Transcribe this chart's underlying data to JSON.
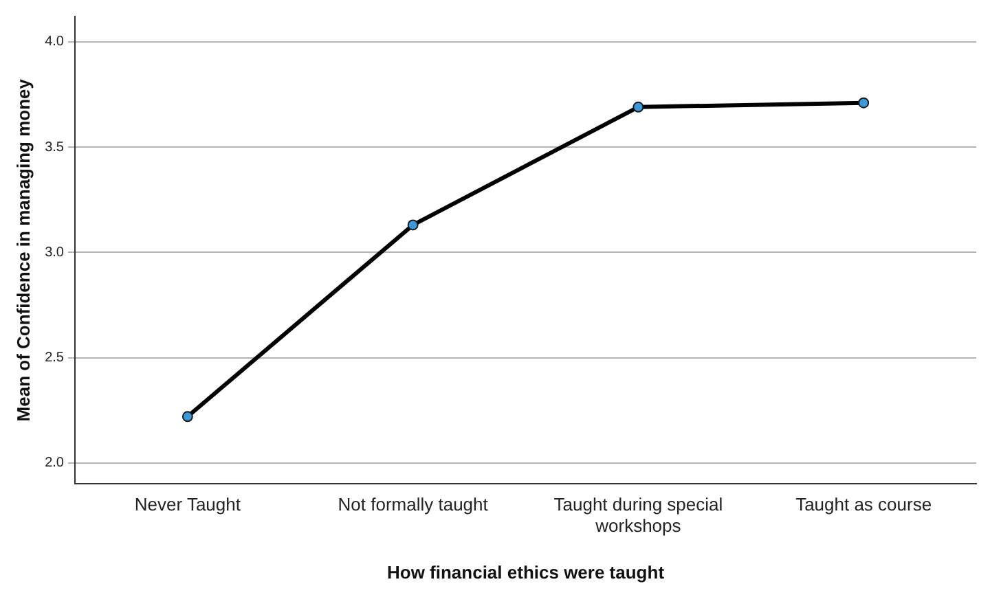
{
  "chart_data": {
    "type": "line",
    "xlabel": "How financial ethics were taught",
    "ylabel": "Mean of Confidence in managing money",
    "categories": [
      "Never Taught",
      "Not formally taught",
      "Taught during special workshops",
      "Taught as course"
    ],
    "series": [
      {
        "color": "#000000",
        "values": [
          2.22,
          3.13,
          3.69,
          3.71
        ]
      }
    ],
    "ylim": [
      1.9,
      4.12
    ],
    "yticks": [
      {
        "value": 2,
        "label": "2.0"
      },
      2.5,
      {
        "value": 3,
        "label": "3.0"
      },
      3.5,
      {
        "value": 4,
        "label": "4.0"
      }
    ],
    "grid": "y",
    "marker": "circle",
    "line_style": "solid",
    "legend": false
  }
}
